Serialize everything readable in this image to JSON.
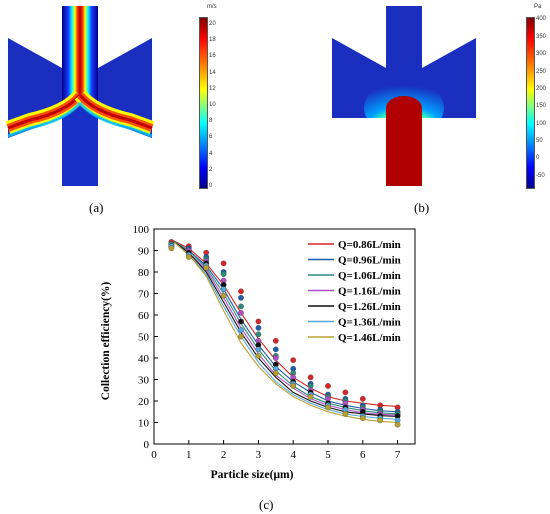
{
  "panel_a": {
    "label": "(a)",
    "colorbar": {
      "unit": "m/s",
      "ticks": [
        "20",
        "18",
        "16",
        "14",
        "12",
        "10",
        "8",
        "6",
        "4",
        "2",
        "0"
      ],
      "min": 0,
      "max": 21
    }
  },
  "panel_b": {
    "label": "(b)",
    "colorbar": {
      "unit": "Pa",
      "ticks": [
        "400",
        "350",
        "300",
        "250",
        "200",
        "150",
        "100",
        "50",
        "0",
        "-50"
      ],
      "min": -80,
      "max": 410
    }
  },
  "panel_c": {
    "label": "(c)"
  },
  "colors": {
    "jet_red": "#a50000",
    "jet_orange": "#ff7f00",
    "jet_yellow": "#ffff00",
    "jet_cyan": "#00ffff",
    "jet_blue": "#1414c8",
    "jet_dark_blue": "#00008c"
  },
  "chart_data": {
    "type": "scatter",
    "xlabel": "Particle size(μm)",
    "ylabel": "Collection efficiency(%)",
    "xlim": [
      0,
      7.5
    ],
    "ylim": [
      0,
      100
    ],
    "xticks": [
      0,
      1,
      2,
      3,
      4,
      5,
      6,
      7
    ],
    "yticks": [
      0,
      10,
      20,
      30,
      40,
      50,
      60,
      70,
      80,
      90,
      100
    ],
    "legend_position": "top-right",
    "grid": false,
    "series": [
      {
        "name": "Q=0.86L/min",
        "color": "#d62728",
        "x": [
          0.5,
          1,
          1.5,
          2,
          2.5,
          3,
          3.5,
          4,
          4.5,
          5,
          5.5,
          6,
          6.5,
          7
        ],
        "y": [
          94,
          92,
          89,
          84,
          71,
          57,
          48,
          39,
          31,
          27,
          24,
          21,
          18,
          17
        ],
        "fit": [
          95,
          91,
          84,
          74,
          61,
          49,
          39,
          31,
          26,
          22,
          20,
          19,
          18,
          17.5
        ]
      },
      {
        "name": "Q=0.96L/min",
        "color": "#1f5fa8",
        "x": [
          0.5,
          1,
          1.5,
          2,
          2.5,
          3,
          3.5,
          4,
          4.5,
          5,
          5.5,
          6,
          6.5,
          7
        ],
        "y": [
          93,
          91,
          87,
          80,
          68,
          54,
          44,
          35,
          28,
          23,
          21,
          18,
          16,
          15
        ],
        "fit": [
          95,
          90,
          83,
          72,
          58,
          46,
          36,
          29,
          24,
          20,
          18,
          16.5,
          15.5,
          15
        ]
      },
      {
        "name": "Q=1.06L/min",
        "color": "#2b8c7c",
        "x": [
          0.5,
          1,
          1.5,
          2,
          2.5,
          3,
          3.5,
          4,
          4.5,
          5,
          5.5,
          6,
          6.5,
          7
        ],
        "y": [
          93,
          90,
          86,
          79,
          64,
          51,
          41,
          33,
          27,
          22,
          20,
          17,
          15,
          14
        ],
        "fit": [
          95,
          90,
          82,
          70,
          56,
          44,
          34,
          27,
          22,
          19,
          17,
          15.5,
          14.5,
          14
        ]
      },
      {
        "name": "Q=1.16L/min",
        "color": "#b04fc4",
        "x": [
          0.5,
          1,
          1.5,
          2,
          2.5,
          3,
          3.5,
          4,
          4.5,
          5,
          5.5,
          6,
          6.5,
          7
        ],
        "y": [
          92,
          90,
          85,
          76,
          61,
          48,
          40,
          31,
          25,
          21,
          19,
          16,
          14,
          13
        ],
        "fit": [
          95,
          89,
          81,
          68,
          54,
          42,
          32,
          26,
          21,
          18,
          16,
          14.5,
          13.8,
          13.4
        ]
      },
      {
        "name": "Q=1.26L/min",
        "color": "#111111",
        "x": [
          0.5,
          1,
          1.5,
          2,
          2.5,
          3,
          3.5,
          4,
          4.5,
          5,
          5.5,
          6,
          6.5,
          7
        ],
        "y": [
          92,
          89,
          84,
          74,
          57,
          46,
          37,
          29,
          24,
          19,
          17,
          15,
          13,
          13
        ],
        "fit": [
          95,
          89,
          80,
          66,
          52,
          40,
          31,
          24,
          20,
          17,
          15,
          14,
          13.2,
          12.8
        ]
      },
      {
        "name": "Q=1.36L/min",
        "color": "#56a8d8",
        "x": [
          0.5,
          1,
          1.5,
          2,
          2.5,
          3,
          3.5,
          4,
          4.5,
          5,
          5.5,
          6,
          6.5,
          7
        ],
        "y": [
          92,
          88,
          83,
          72,
          53,
          44,
          35,
          28,
          23,
          18,
          16,
          13,
          12,
          11
        ],
        "fit": [
          95,
          88,
          79,
          64,
          50,
          38,
          29,
          23,
          19,
          16,
          14,
          12.8,
          12,
          11.5
        ]
      },
      {
        "name": "Q=1.46L/min",
        "color": "#b8a030",
        "x": [
          0.5,
          1,
          1.5,
          2,
          2.5,
          3,
          3.5,
          4,
          4.5,
          5,
          5.5,
          6,
          6.5,
          7
        ],
        "y": [
          91,
          87,
          82,
          69,
          50,
          41,
          33,
          27,
          22,
          17,
          14,
          12,
          11,
          9
        ],
        "fit": [
          95,
          88,
          78,
          62,
          47,
          36,
          28,
          22,
          18,
          15,
          13,
          11.5,
          10.5,
          10
        ]
      }
    ]
  }
}
